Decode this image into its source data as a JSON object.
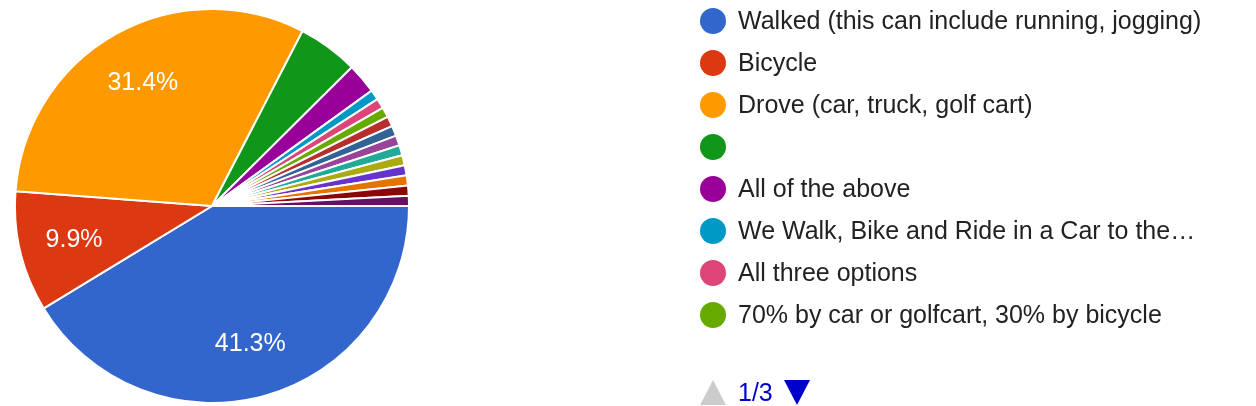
{
  "chart_data": {
    "type": "pie",
    "categories": [
      "Walked (this can include running, jogging)",
      "Bicycle",
      "Drove (car, truck, golf cart)",
      null,
      "All of the above",
      "We Walk, Bike and Ride in a Car to the…",
      "All three options",
      "70% by car or golfcart, 30% by bicycle",
      null,
      null,
      null,
      null,
      null,
      null,
      null,
      null,
      null
    ],
    "values": [
      41.3,
      9.9,
      31.4,
      4.96,
      2.48,
      0.83,
      0.83,
      0.83,
      0.83,
      0.83,
      0.83,
      0.83,
      0.83,
      0.83,
      0.83,
      0.83,
      0.83
    ],
    "value_labels": [
      "41.3%",
      "9.9%",
      "31.4%",
      null,
      null,
      null,
      null,
      null,
      null,
      null,
      null,
      null,
      null,
      null,
      null,
      null,
      null
    ],
    "colors": [
      "#3366cc",
      "#dc3912",
      "#ff9900",
      "#109618",
      "#990099",
      "#0099c6",
      "#dd4477",
      "#66aa00",
      "#b82e2e",
      "#316395",
      "#994499",
      "#22aa99",
      "#aaaa11",
      "#6633cc",
      "#e67300",
      "#8b0707",
      "#651067"
    ],
    "legend": "right",
    "annotations": [
      "1/3"
    ]
  }
}
